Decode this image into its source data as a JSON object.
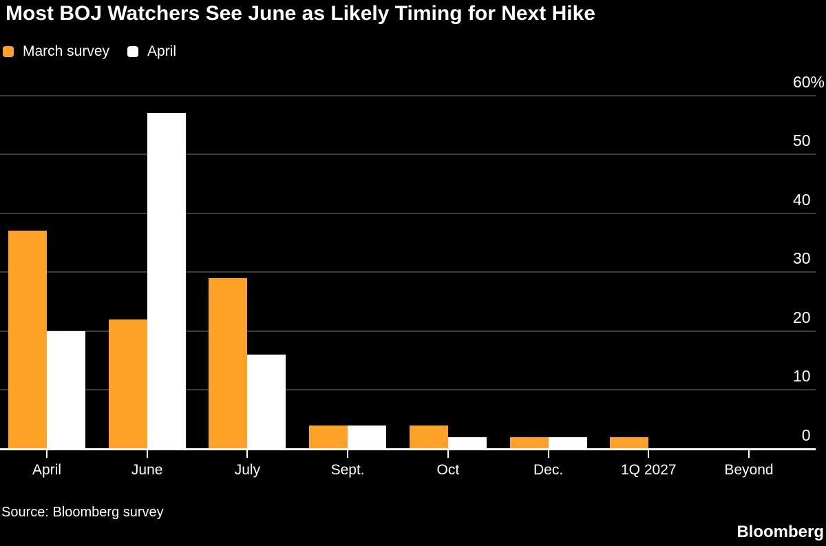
{
  "title": "Most BOJ Watchers See June as Likely Timing for Next Hike",
  "legend": {
    "items": [
      {
        "label": "March survey",
        "color": "#FFA227"
      },
      {
        "label": "April",
        "color": "#FFFFFF"
      }
    ]
  },
  "footer": {
    "source": "Source: Bloomberg survey",
    "brand": "Bloomberg"
  },
  "colors": {
    "background": "#000000",
    "text": "#FFFFFF",
    "gridline": "#3C3C3C",
    "axis": "#FFFFFF",
    "march_series": "#FFA227",
    "april_series": "#FFFFFF"
  },
  "chart_data": {
    "type": "bar",
    "title": "Most BOJ Watchers See June as Likely Timing for Next Hike",
    "categories": [
      "April",
      "June",
      "July",
      "Sept.",
      "Oct",
      "Dec.",
      "1Q 2027",
      "Beyond"
    ],
    "series": [
      {
        "name": "March survey",
        "color": "#FFA227",
        "values": [
          37,
          22,
          29,
          4,
          4,
          2,
          2,
          0
        ]
      },
      {
        "name": "April",
        "color": "#FFFFFF",
        "values": [
          20,
          57,
          16,
          4,
          2,
          2,
          0,
          0
        ]
      }
    ],
    "xlabel": "",
    "ylabel": "",
    "ylim": [
      0,
      60
    ],
    "y_ticks": [
      0,
      10,
      20,
      30,
      40,
      50,
      60
    ],
    "y_top_tick_label": "60%",
    "grid": true,
    "legend_position": "top-left",
    "source": "Source: Bloomberg survey"
  }
}
